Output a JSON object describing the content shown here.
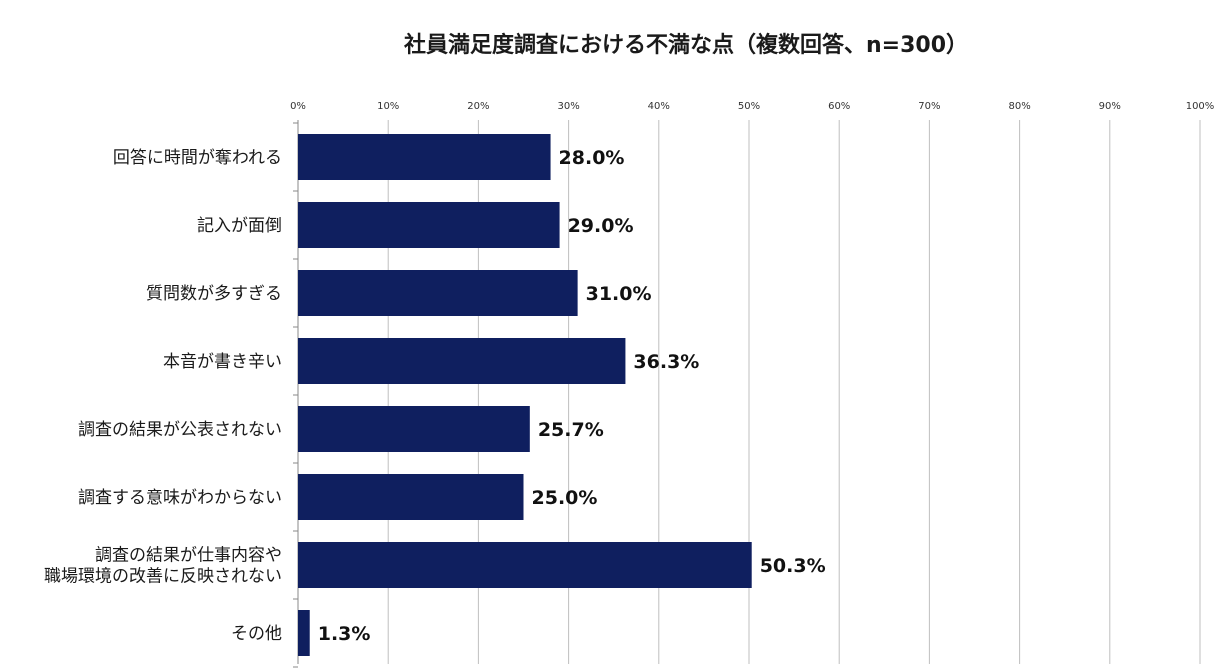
{
  "chart_data": {
    "type": "bar",
    "orientation": "horizontal",
    "title": "社員満足度調査における不満な点（複数回答、n=300）",
    "xlabel": "",
    "ylabel": "",
    "xlim": [
      0,
      100
    ],
    "x_ticks": [
      "0%",
      "10%",
      "20%",
      "30%",
      "40%",
      "50%",
      "60%",
      "70%",
      "80%",
      "90%",
      "100%"
    ],
    "grid": true,
    "legend": "none",
    "bar_color": "#0f1f5f",
    "categories": [
      [
        "回答に時間が奪われる"
      ],
      [
        "記入が面倒"
      ],
      [
        "質問数が多すぎる"
      ],
      [
        "本音が書き辛い"
      ],
      [
        "調査の結果が公表されない"
      ],
      [
        "調査する意味がわからない"
      ],
      [
        "調査の結果が仕事内容や",
        "職場環境の改善に反映されない"
      ],
      [
        "その他"
      ]
    ],
    "values": [
      28.0,
      29.0,
      31.0,
      36.3,
      25.7,
      25.0,
      50.3,
      1.3
    ],
    "data_labels": [
      "28.0%",
      "29.0%",
      "31.0%",
      "36.3%",
      "25.7%",
      "25.0%",
      "50.3%",
      "1.3%"
    ]
  }
}
